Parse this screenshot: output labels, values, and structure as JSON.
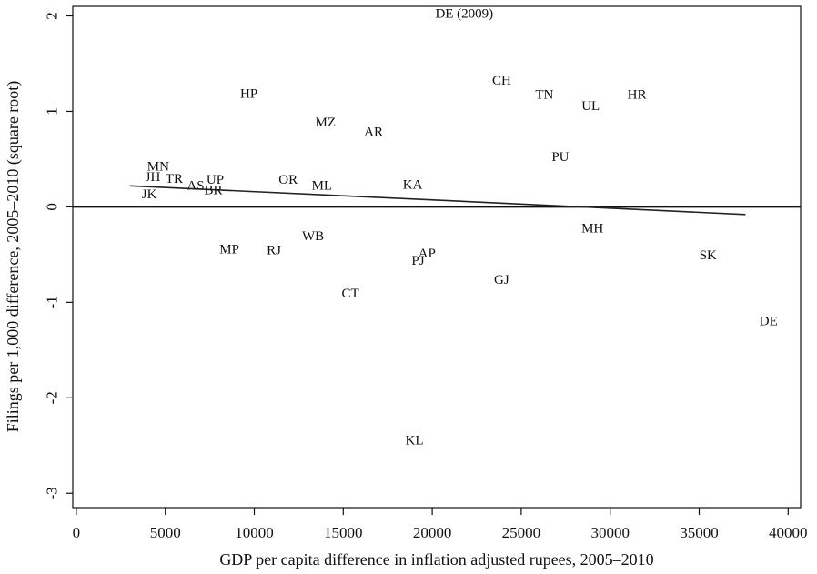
{
  "chart_data": {
    "type": "scatter",
    "xlabel": "GDP per capita difference in inflation adjusted rupees, 2005–2010",
    "ylabel": "Filings per 1,000 difference, 2005–2010 (square root)",
    "xlim": [
      -200,
      40700
    ],
    "ylim": [
      -3.15,
      2.1
    ],
    "x_ticks": [
      0,
      5000,
      10000,
      15000,
      20000,
      25000,
      30000,
      35000,
      40000
    ],
    "y_ticks": [
      -3,
      -2,
      -1,
      0,
      1,
      2
    ],
    "reference_line_y": 0,
    "fit_line": {
      "x": [
        3000,
        37600
      ],
      "y": [
        0.22,
        -0.08
      ]
    },
    "points": [
      {
        "label": "DE (2009)",
        "x": 21800,
        "y": 2.02
      },
      {
        "label": "CH",
        "x": 23900,
        "y": 1.32
      },
      {
        "label": "TN",
        "x": 26300,
        "y": 1.17
      },
      {
        "label": "UL",
        "x": 28900,
        "y": 1.05
      },
      {
        "label": "HR",
        "x": 31500,
        "y": 1.17
      },
      {
        "label": "HP",
        "x": 9700,
        "y": 1.18
      },
      {
        "label": "MZ",
        "x": 14000,
        "y": 0.88
      },
      {
        "label": "AR",
        "x": 16700,
        "y": 0.78
      },
      {
        "label": "PU",
        "x": 27200,
        "y": 0.52
      },
      {
        "label": "MN",
        "x": 4600,
        "y": 0.42
      },
      {
        "label": "JH",
        "x": 4300,
        "y": 0.31
      },
      {
        "label": "TR",
        "x": 5500,
        "y": 0.29
      },
      {
        "label": "AS",
        "x": 6700,
        "y": 0.22
      },
      {
        "label": "UP",
        "x": 7800,
        "y": 0.28
      },
      {
        "label": "BR",
        "x": 7700,
        "y": 0.17
      },
      {
        "label": "JK",
        "x": 4100,
        "y": 0.13
      },
      {
        "label": "OR",
        "x": 11900,
        "y": 0.28
      },
      {
        "label": "ML",
        "x": 13800,
        "y": 0.22
      },
      {
        "label": "KA",
        "x": 18900,
        "y": 0.23
      },
      {
        "label": "MH",
        "x": 29000,
        "y": -0.23
      },
      {
        "label": "WB",
        "x": 13300,
        "y": -0.31
      },
      {
        "label": "MP",
        "x": 8600,
        "y": -0.45
      },
      {
        "label": "RJ",
        "x": 11100,
        "y": -0.46
      },
      {
        "label": "AP",
        "x": 19700,
        "y": -0.49
      },
      {
        "label": "PJ",
        "x": 19200,
        "y": -0.57
      },
      {
        "label": "SK",
        "x": 35500,
        "y": -0.51
      },
      {
        "label": "GJ",
        "x": 23900,
        "y": -0.77
      },
      {
        "label": "CT",
        "x": 15400,
        "y": -0.91
      },
      {
        "label": "DE",
        "x": 38900,
        "y": -1.2
      },
      {
        "label": "KL",
        "x": 19000,
        "y": -2.45
      }
    ]
  }
}
